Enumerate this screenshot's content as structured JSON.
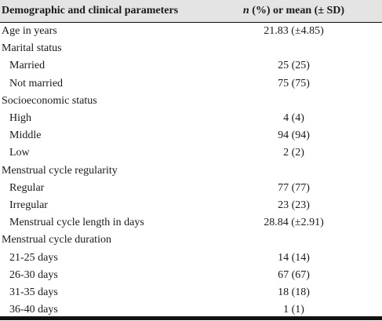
{
  "header": {
    "col1": "Demographic and clinical parameters",
    "col2_italic": "n",
    "col2_rest": " (%) or mean (± SD)"
  },
  "rows": [
    {
      "label": "Age in years",
      "value": "21.83 (±4.85)",
      "indent": false
    },
    {
      "label": "Marital status",
      "value": "",
      "indent": false
    },
    {
      "label": "Married",
      "value": "25 (25)",
      "indent": true
    },
    {
      "label": "Not married",
      "value": "75 (75)",
      "indent": true
    },
    {
      "label": "Socioeconomic status",
      "value": "",
      "indent": false
    },
    {
      "label": "High",
      "value": "4 (4)",
      "indent": true
    },
    {
      "label": "Middle",
      "value": "94 (94)",
      "indent": true
    },
    {
      "label": "Low",
      "value": "2 (2)",
      "indent": true
    },
    {
      "label": "Menstrual cycle regularity",
      "value": "",
      "indent": false
    },
    {
      "label": "Regular",
      "value": "77 (77)",
      "indent": true
    },
    {
      "label": "Irregular",
      "value": "23 (23)",
      "indent": true
    },
    {
      "label": "Menstrual cycle length in days",
      "value": "28.84 (±2.91)",
      "indent": true
    },
    {
      "label": "Menstrual cycle duration",
      "value": "",
      "indent": false
    },
    {
      "label": "21-25 days",
      "value": "14 (14)",
      "indent": true
    },
    {
      "label": "26-30 days",
      "value": "67 (67)",
      "indent": true
    },
    {
      "label": "31-35 days",
      "value": "18 (18)",
      "indent": true
    },
    {
      "label": "36-40 days",
      "value": "1 (1)",
      "indent": true
    }
  ]
}
